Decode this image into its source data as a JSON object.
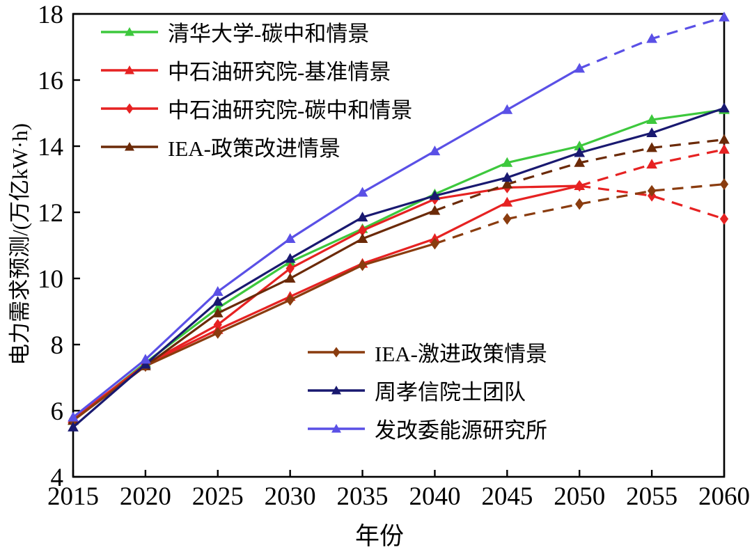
{
  "chart_data": {
    "type": "line",
    "title": "",
    "xlabel": "年份",
    "ylabel": "电力需求预测/(万亿kW·h)",
    "xlim": [
      2015,
      2060
    ],
    "ylim": [
      4,
      18
    ],
    "grid": false,
    "x_ticks": [
      2015,
      2020,
      2025,
      2030,
      2035,
      2040,
      2045,
      2050,
      2055,
      2060
    ],
    "y_ticks": [
      4,
      6,
      8,
      10,
      12,
      14,
      16,
      18
    ],
    "x": [
      2015,
      2020,
      2025,
      2030,
      2035,
      2040,
      2045,
      2050,
      2055,
      2060
    ],
    "series": [
      {
        "id": "tsinghua-carbon-neutral",
        "name": "清华大学-碳中和情景",
        "color": "#3dc83d",
        "marker": "triangle",
        "dash_from": null,
        "values": [
          5.7,
          7.45,
          9.1,
          10.5,
          11.5,
          12.55,
          13.5,
          14.0,
          14.8,
          15.1
        ]
      },
      {
        "id": "cnpc-baseline",
        "name": "中石油研究院-基准情景",
        "color": "#e62222",
        "marker": "triangle",
        "dash_from": 2050,
        "values": [
          5.75,
          7.4,
          8.45,
          9.45,
          10.45,
          11.2,
          12.3,
          12.8,
          13.45,
          13.9
        ]
      },
      {
        "id": "cnpc-carbon-neutral",
        "name": "中石油研究院-碳中和情景",
        "color": "#e62222",
        "marker": "diamond",
        "dash_from": 2050,
        "values": [
          5.75,
          7.4,
          8.6,
          10.3,
          11.45,
          12.4,
          12.75,
          12.8,
          12.5,
          11.8
        ]
      },
      {
        "id": "iea-policy-improvement",
        "name": "IEA-政策改进情景",
        "color": "#6b2a08",
        "marker": "triangle",
        "dash_from": 2040,
        "values": [
          5.7,
          7.35,
          8.95,
          10.0,
          11.2,
          12.05,
          12.85,
          13.5,
          13.95,
          14.2
        ]
      },
      {
        "id": "iea-aggressive-policy",
        "name": "IEA-激进政策情景",
        "color": "#8a3c0f",
        "marker": "diamond",
        "dash_from": 2040,
        "values": [
          5.7,
          7.35,
          8.35,
          9.35,
          10.4,
          11.05,
          11.8,
          12.25,
          12.65,
          12.85
        ]
      },
      {
        "id": "zhou-xiaoxin-team",
        "name": "周孝信院士团队",
        "color": "#191970",
        "marker": "triangle",
        "dash_from": null,
        "values": [
          5.5,
          7.4,
          9.3,
          10.6,
          11.85,
          12.5,
          13.05,
          13.8,
          14.4,
          15.15
        ]
      },
      {
        "id": "ndrc-energy-research-institute",
        "name": "发改委能源研究所",
        "color": "#5a50e6",
        "marker": "triangle",
        "dash_from": 2050,
        "values": [
          5.8,
          7.55,
          9.6,
          11.2,
          12.6,
          13.85,
          15.1,
          16.35,
          17.25,
          17.9
        ]
      }
    ],
    "legend": {
      "group1_indices": [
        0,
        1,
        2,
        3
      ],
      "group2_indices": [
        4,
        5,
        6
      ],
      "position_group1": "top-left",
      "position_group2": "bottom-center"
    }
  }
}
